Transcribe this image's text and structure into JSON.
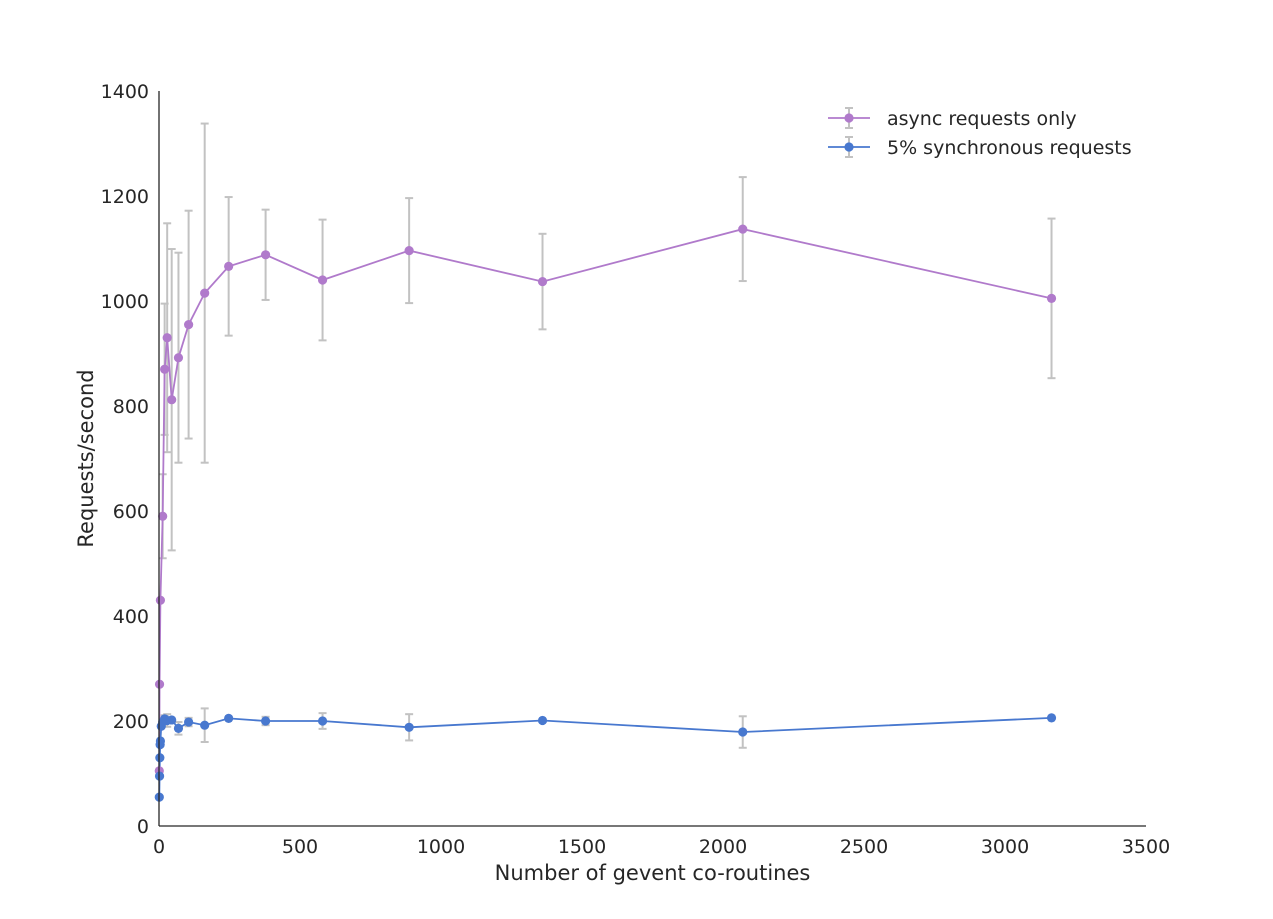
{
  "chart_data": {
    "type": "line",
    "xlabel": "Number of gevent co-routines",
    "ylabel": "Requests/second",
    "xlim": [
      0,
      3500
    ],
    "ylim": [
      0,
      1400
    ],
    "xticks": [
      0,
      500,
      1000,
      1500,
      2000,
      2500,
      3000,
      3500
    ],
    "yticks": [
      0,
      200,
      400,
      600,
      800,
      1000,
      1200,
      1400
    ],
    "grid": false,
    "legend_position": "top-right",
    "series": [
      {
        "name": "async requests only",
        "color": "#b07acb",
        "points": [
          {
            "x": 1,
            "y": 105,
            "err": 0
          },
          {
            "x": 2,
            "y": 270,
            "err": 0
          },
          {
            "x": 5,
            "y": 430,
            "err": 0
          },
          {
            "x": 13,
            "y": 590,
            "err": 80
          },
          {
            "x": 20,
            "y": 870,
            "err": 125
          },
          {
            "x": 29,
            "y": 930,
            "err": 218
          },
          {
            "x": 45,
            "y": 812,
            "err": 287
          },
          {
            "x": 69,
            "y": 892,
            "err": 200
          },
          {
            "x": 105,
            "y": 955,
            "err": 217
          },
          {
            "x": 162,
            "y": 1015,
            "err": 323
          },
          {
            "x": 247,
            "y": 1066,
            "err": 132
          },
          {
            "x": 378,
            "y": 1088,
            "err": 86
          },
          {
            "x": 580,
            "y": 1040,
            "err": 115
          },
          {
            "x": 887,
            "y": 1096,
            "err": 100
          },
          {
            "x": 1360,
            "y": 1037,
            "err": 91
          },
          {
            "x": 2070,
            "y": 1137,
            "err": 99
          },
          {
            "x": 3165,
            "y": 1005,
            "err": 152
          }
        ]
      },
      {
        "name": "5% synchronous requests",
        "color": "#4878cf",
        "points": [
          {
            "x": 1,
            "y": 55,
            "err": 0
          },
          {
            "x": 2,
            "y": 95,
            "err": 0
          },
          {
            "x": 3,
            "y": 130,
            "err": 0
          },
          {
            "x": 4,
            "y": 155,
            "err": 0
          },
          {
            "x": 5,
            "y": 162,
            "err": 0
          },
          {
            "x": 8,
            "y": 190,
            "err": 0
          },
          {
            "x": 13,
            "y": 198,
            "err": 0
          },
          {
            "x": 20,
            "y": 204,
            "err": 7
          },
          {
            "x": 29,
            "y": 201,
            "err": 12
          },
          {
            "x": 45,
            "y": 202,
            "err": 0
          },
          {
            "x": 69,
            "y": 186,
            "err": 12
          },
          {
            "x": 105,
            "y": 198,
            "err": 8
          },
          {
            "x": 162,
            "y": 192,
            "err": 32
          },
          {
            "x": 247,
            "y": 205,
            "err": 0
          },
          {
            "x": 378,
            "y": 200,
            "err": 8
          },
          {
            "x": 580,
            "y": 200,
            "err": 15
          },
          {
            "x": 887,
            "y": 188,
            "err": 25
          },
          {
            "x": 1360,
            "y": 201,
            "err": 0
          },
          {
            "x": 2070,
            "y": 179,
            "err": 30
          },
          {
            "x": 3165,
            "y": 206,
            "err": 0
          }
        ]
      }
    ]
  },
  "colors": {
    "axis": "#262626",
    "errorbar": "#c2c2c2",
    "background": "#ffffff"
  }
}
